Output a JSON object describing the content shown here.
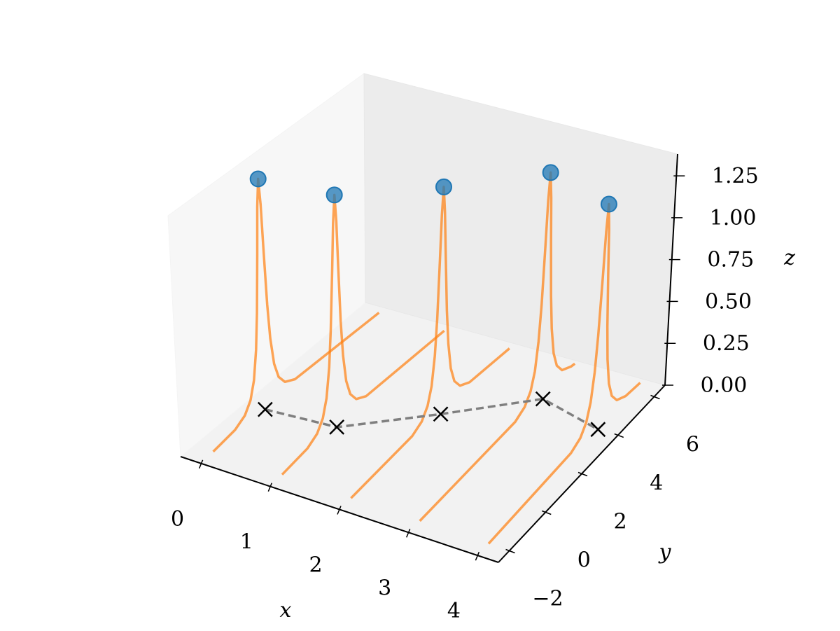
{
  "chart_data": {
    "type": "line3d",
    "xlabel": "x",
    "ylabel": "y",
    "zlabel": "z",
    "xlim": [
      -0.3,
      4.3
    ],
    "ylim": [
      -2.6,
      6.6
    ],
    "zlim": [
      0,
      1.38
    ],
    "xticks": [
      0,
      1,
      2,
      3,
      4
    ],
    "yticks": [
      {
        "value": -2,
        "label": "−2"
      },
      0,
      2,
      4,
      6
    ],
    "zticks": [
      {
        "value": 0,
        "label": "0.00"
      },
      0.25,
      {
        "value": 0.5,
        "label": "0.50"
      },
      0.75,
      {
        "value": 1,
        "label": "1.00"
      },
      1.25
    ],
    "grid": false,
    "curves": {
      "color": "#ff7f0e",
      "series": [
        {
          "x": 0,
          "y": [
            -2,
            -0.9,
            -0.4,
            -0.1,
            0.1,
            0.25,
            0.35,
            0.45,
            0.52,
            0.6,
            0.68,
            0.75,
            0.85,
            0.95,
            1.1,
            1.3,
            1.6,
            2.1,
            6.3
          ],
          "z": [
            0.01,
            0.028,
            0.062,
            0.121,
            0.217,
            0.379,
            0.586,
            0.915,
            1.183,
            1.34,
            1.183,
            0.915,
            0.586,
            0.379,
            0.217,
            0.121,
            0.062,
            0.028,
            0.002
          ]
        },
        {
          "x": 1,
          "y": [
            -2,
            -0.7,
            -0.2,
            0.1,
            0.3,
            0.45,
            0.55,
            0.65,
            0.72,
            0.8,
            0.88,
            0.95,
            1.05,
            1.15,
            1.3,
            1.5,
            1.8,
            2.3,
            6.3
          ],
          "z": [
            0.008,
            0.028,
            0.062,
            0.121,
            0.217,
            0.379,
            0.586,
            0.915,
            1.183,
            1.34,
            1.183,
            0.915,
            0.586,
            0.379,
            0.217,
            0.121,
            0.062,
            0.028,
            0.002
          ]
        },
        {
          "x": 2,
          "y": [
            -2,
            1.2,
            1.7,
            2.0,
            2.2,
            2.35,
            2.45,
            2.55,
            2.62,
            2.7,
            2.78,
            2.85,
            2.95,
            3.05,
            3.2,
            3.4,
            3.7,
            4.2,
            6.3
          ],
          "z": [
            0.003,
            0.028,
            0.061,
            0.119,
            0.214,
            0.374,
            0.577,
            0.902,
            1.166,
            1.32,
            1.166,
            0.902,
            0.577,
            0.374,
            0.214,
            0.119,
            0.061,
            0.028,
            0.005
          ]
        },
        {
          "x": 3,
          "y": [
            -2,
            3.1,
            3.6,
            3.9,
            4.1,
            4.25,
            4.35,
            4.45,
            4.52,
            4.6,
            4.68,
            4.75,
            4.85,
            4.95,
            5.1,
            5.3,
            5.6,
            6.1,
            6.3
          ],
          "z": [
            0.002,
            0.028,
            0.061,
            0.12,
            0.215,
            0.376,
            0.581,
            0.908,
            1.174,
            1.33,
            1.174,
            0.908,
            0.581,
            0.376,
            0.215,
            0.12,
            0.061,
            0.028,
            0.022
          ]
        },
        {
          "x": 4,
          "y": [
            -2,
            2.5,
            3.0,
            3.3,
            3.5,
            3.65,
            3.75,
            3.85,
            3.92,
            4.0,
            4.08,
            4.15,
            4.25,
            4.35,
            4.5,
            4.7,
            5.0,
            5.5,
            6.3
          ],
          "z": [
            0.002,
            0.028,
            0.06,
            0.118,
            0.212,
            0.371,
            0.572,
            0.895,
            1.157,
            1.31,
            1.157,
            0.895,
            0.572,
            0.371,
            0.212,
            0.118,
            0.06,
            0.028,
            0.016
          ]
        }
      ]
    },
    "peaks": {
      "color": "#1f77b4",
      "floor_marker_color": "#000000",
      "floor_line_color": "#7f7f7f",
      "x": [
        0,
        1,
        2,
        3,
        4
      ],
      "y": [
        0.6,
        0.8,
        2.7,
        4.6,
        4.0
      ],
      "z": [
        1.34,
        1.34,
        1.32,
        1.33,
        1.31
      ]
    }
  }
}
